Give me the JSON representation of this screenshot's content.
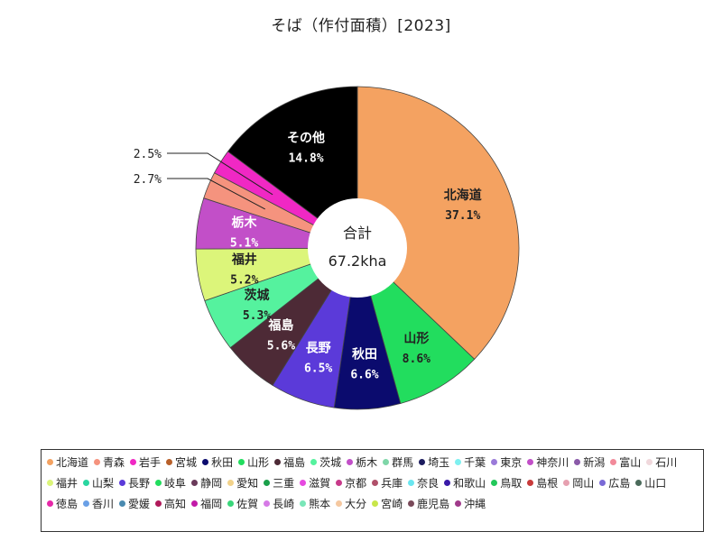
{
  "title": "そば（作付面積）[2023]",
  "chart_data": {
    "type": "pie",
    "style": "donut",
    "center_label": "合計",
    "center_value": "67.2kha",
    "slices": [
      {
        "label": "北海道",
        "value": 37.1,
        "display": "37.1%",
        "color": "#f4a261",
        "text_color": "#222222"
      },
      {
        "label": "山形",
        "value": 8.6,
        "display": "8.6%",
        "color": "#22dd5e",
        "text_color": "#222222"
      },
      {
        "label": "秋田",
        "value": 6.6,
        "display": "6.6%",
        "color": "#0b0b6e",
        "text_color": "#ffffff"
      },
      {
        "label": "長野",
        "value": 6.5,
        "display": "6.5%",
        "color": "#5b3ad9",
        "text_color": "#ffffff"
      },
      {
        "label": "福島",
        "value": 5.6,
        "display": "5.6%",
        "color": "#4d2a36",
        "text_color": "#ffffff"
      },
      {
        "label": "茨城",
        "value": 5.3,
        "display": "5.3%",
        "color": "#55f29e",
        "text_color": "#222222"
      },
      {
        "label": "福井",
        "value": 5.2,
        "display": "5.2%",
        "color": "#dcf57a",
        "text_color": "#222222"
      },
      {
        "label": "栃木",
        "value": 5.1,
        "display": "5.1%",
        "color": "#c24fc8",
        "text_color": "#ffffff"
      },
      {
        "label": "",
        "value": 2.7,
        "display": "2.7%",
        "color": "#f5937e",
        "callout": true
      },
      {
        "label": "",
        "value": 2.5,
        "display": "2.5%",
        "color": "#f028c4",
        "callout": true
      },
      {
        "label": "その他",
        "value": 14.8,
        "display": "14.8%",
        "color": "#000000",
        "text_color": "#ffffff"
      }
    ],
    "legend": [
      {
        "label": "北海道",
        "color": "#f4a261"
      },
      {
        "label": "青森",
        "color": "#f5937e"
      },
      {
        "label": "岩手",
        "color": "#f028c4"
      },
      {
        "label": "宮城",
        "color": "#b8602a"
      },
      {
        "label": "秋田",
        "color": "#0b0b6e"
      },
      {
        "label": "山形",
        "color": "#22dd5e"
      },
      {
        "label": "福島",
        "color": "#4d2a36"
      },
      {
        "label": "茨城",
        "color": "#55f29e"
      },
      {
        "label": "栃木",
        "color": "#c24fc8"
      },
      {
        "label": "群馬",
        "color": "#7fd6a8"
      },
      {
        "label": "埼玉",
        "color": "#1c1c5e"
      },
      {
        "label": "千葉",
        "color": "#7ef0f0"
      },
      {
        "label": "東京",
        "color": "#9a7ad9"
      },
      {
        "label": "神奈川",
        "color": "#c24fc8"
      },
      {
        "label": "新潟",
        "color": "#8a5aa8"
      },
      {
        "label": "富山",
        "color": "#f28a9a"
      },
      {
        "label": "石川",
        "color": "#f0d8dc"
      },
      {
        "label": "福井",
        "color": "#dcf57a"
      },
      {
        "label": "山梨",
        "color": "#2ad6a0"
      },
      {
        "label": "長野",
        "color": "#5b3ad9"
      },
      {
        "label": "岐阜",
        "color": "#22dd5e"
      },
      {
        "label": "静岡",
        "color": "#6a3a5a"
      },
      {
        "label": "愛知",
        "color": "#f2d28a"
      },
      {
        "label": "三重",
        "color": "#1aa04a"
      },
      {
        "label": "滋賀",
        "color": "#e64ae0"
      },
      {
        "label": "京都",
        "color": "#c83a8a"
      },
      {
        "label": "兵庫",
        "color": "#b0506a"
      },
      {
        "label": "奈良",
        "color": "#6ae6f0"
      },
      {
        "label": "和歌山",
        "color": "#3a1aa8"
      },
      {
        "label": "鳥取",
        "color": "#22c85a"
      },
      {
        "label": "島根",
        "color": "#c83a3a"
      },
      {
        "label": "岡山",
        "color": "#e6a0b0"
      },
      {
        "label": "広島",
        "color": "#7a6ad6"
      },
      {
        "label": "山口",
        "color": "#4a6a5a"
      },
      {
        "label": "徳島",
        "color": "#e628a8"
      },
      {
        "label": "香川",
        "color": "#6aa0e6"
      },
      {
        "label": "愛媛",
        "color": "#4a8ab0"
      },
      {
        "label": "高知",
        "color": "#b01a5a"
      },
      {
        "label": "福岡",
        "color": "#c21aa8"
      },
      {
        "label": "佐賀",
        "color": "#3ad67a"
      },
      {
        "label": "長崎",
        "color": "#d67ae6"
      },
      {
        "label": "熊本",
        "color": "#7ae6b8"
      },
      {
        "label": "大分",
        "color": "#f5c8a0"
      },
      {
        "label": "宮崎",
        "color": "#c8e64a"
      },
      {
        "label": "鹿児島",
        "color": "#7a4a5a"
      },
      {
        "label": "沖縄",
        "color": "#a03a8a"
      }
    ]
  }
}
